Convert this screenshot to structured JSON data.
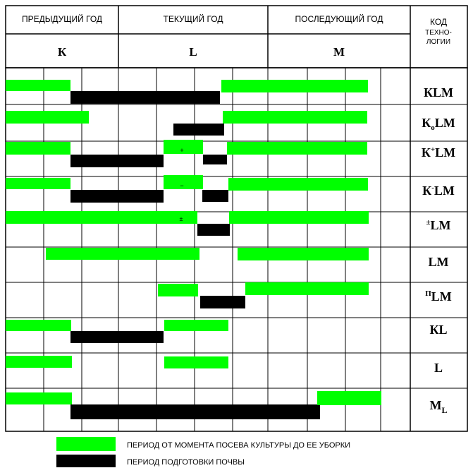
{
  "header": {
    "periods": [
      "ПРЕДЫДУЩИЙ ГОД",
      "ТЕКУЩИЙ  ГОД",
      "ПОСЛЕДУЮЩИЙ ГОД"
    ],
    "letters": [
      "К",
      "L",
      "M"
    ],
    "code_lines": [
      "КОД",
      "ТЕХНО-",
      "ЛОГИИ"
    ]
  },
  "technologies": [
    {
      "base": "КLM"
    },
    {
      "base": "К",
      "sub": "о",
      "rest": "LM"
    },
    {
      "base": "К",
      "sup": "+",
      "rest": "LM"
    },
    {
      "base": "К",
      "sup": "-",
      "rest": "LM"
    },
    {
      "pre_sup": "±",
      "rest": "LM"
    },
    {
      "base": "LM"
    },
    {
      "pre_sup": "П",
      "rest": "LM"
    },
    {
      "base": "КL"
    },
    {
      "base": "L"
    },
    {
      "base": "M",
      "sub": "L"
    }
  ],
  "bar_marks": {
    "plus": "+",
    "minus": "−",
    "plusminus": "±"
  },
  "legend": {
    "green_label": "ПЕРИОД ОТ МОМЕНТА ПОСЕВА КУЛЬТУРЫ  ДО  ЕЕ УБОРКИ",
    "black_label": "ПЕРИОД   ПОДГОТОВКИ ПОЧВЫ"
  },
  "colors": {
    "crop_period": "#00ff00",
    "soil_prep": "#000000"
  }
}
